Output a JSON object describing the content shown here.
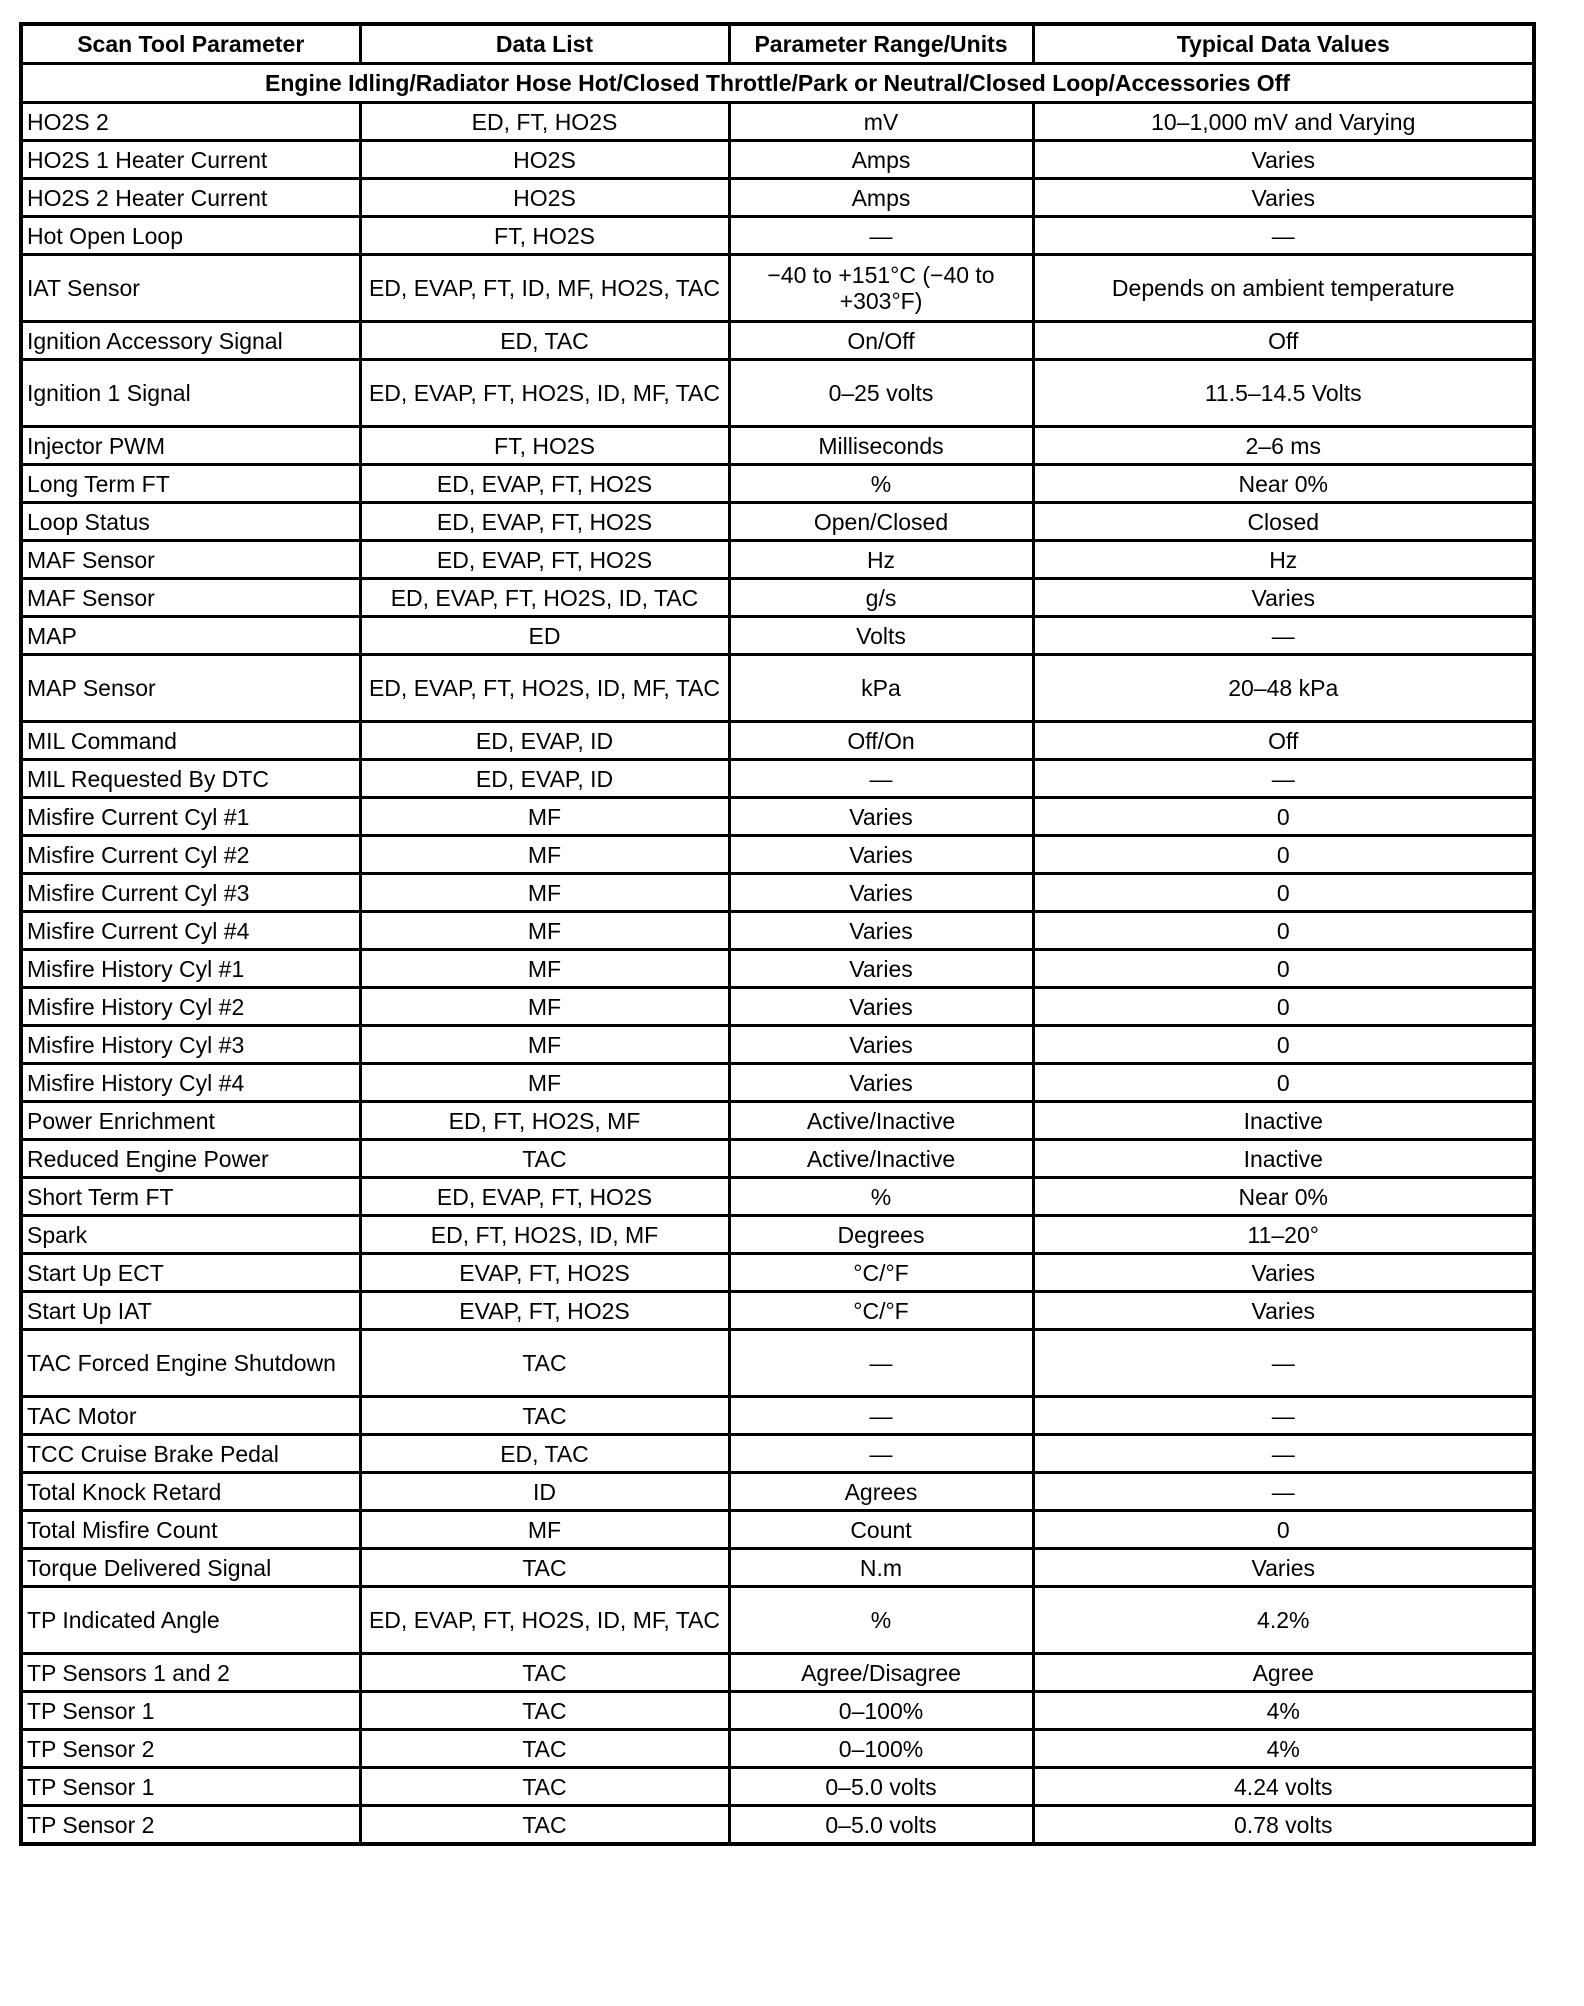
{
  "headers": [
    "Scan Tool Parameter",
    "Data List",
    "Parameter Range/Units",
    "Typical Data Values"
  ],
  "condition": "Engine Idling/Radiator Hose Hot/Closed Throttle/Park or Neutral/Closed Loop/Accessories Off",
  "rows": [
    [
      "HO2S 2",
      "ED, FT, HO2S",
      "mV",
      "10–1,000 mV and Varying"
    ],
    [
      "HO2S 1 Heater Current",
      "HO2S",
      "Amps",
      "Varies"
    ],
    [
      "HO2S 2 Heater Current",
      "HO2S",
      "Amps",
      "Varies"
    ],
    [
      "Hot Open Loop",
      "FT, HO2S",
      "—",
      "—"
    ],
    [
      "IAT Sensor",
      "ED, EVAP, FT, ID, MF, HO2S, TAC",
      "−40 to +151°C (−40 to +303°F)",
      "Depends on ambient temperature"
    ],
    [
      "Ignition Accessory Signal",
      "ED, TAC",
      "On/Off",
      "Off"
    ],
    [
      "Ignition 1 Signal",
      "ED, EVAP, FT, HO2S, ID, MF, TAC",
      "0–25 volts",
      "11.5–14.5 Volts"
    ],
    [
      "Injector PWM",
      "FT, HO2S",
      "Milliseconds",
      "2–6 ms"
    ],
    [
      "Long Term FT",
      "ED, EVAP, FT, HO2S",
      "%",
      "Near 0%"
    ],
    [
      "Loop Status",
      "ED, EVAP, FT, HO2S",
      "Open/Closed",
      "Closed"
    ],
    [
      "MAF Sensor",
      "ED, EVAP, FT, HO2S",
      "Hz",
      "Hz"
    ],
    [
      "MAF Sensor",
      "ED, EVAP, FT, HO2S, ID, TAC",
      "g/s",
      "Varies"
    ],
    [
      "MAP",
      "ED",
      "Volts",
      "—"
    ],
    [
      "MAP Sensor",
      "ED, EVAP, FT, HO2S, ID, MF, TAC",
      "kPa",
      "20–48 kPa"
    ],
    [
      "MIL Command",
      "ED, EVAP, ID",
      "Off/On",
      "Off"
    ],
    [
      "MIL Requested By DTC",
      "ED, EVAP, ID",
      "—",
      "—"
    ],
    [
      "Misfire Current Cyl #1",
      "MF",
      "Varies",
      "0"
    ],
    [
      "Misfire Current Cyl #2",
      "MF",
      "Varies",
      "0"
    ],
    [
      "Misfire Current Cyl #3",
      "MF",
      "Varies",
      "0"
    ],
    [
      "Misfire Current Cyl #4",
      "MF",
      "Varies",
      "0"
    ],
    [
      "Misfire History Cyl #1",
      "MF",
      "Varies",
      "0"
    ],
    [
      "Misfire History Cyl #2",
      "MF",
      "Varies",
      "0"
    ],
    [
      "Misfire History Cyl #3",
      "MF",
      "Varies",
      "0"
    ],
    [
      "Misfire History Cyl #4",
      "MF",
      "Varies",
      "0"
    ],
    [
      "Power Enrichment",
      "ED, FT, HO2S, MF",
      "Active/Inactive",
      "Inactive"
    ],
    [
      "Reduced Engine Power",
      "TAC",
      "Active/Inactive",
      "Inactive"
    ],
    [
      "Short Term FT",
      "ED, EVAP, FT, HO2S",
      "%",
      "Near 0%"
    ],
    [
      "Spark",
      "ED, FT, HO2S, ID, MF",
      "Degrees",
      "11–20°"
    ],
    [
      "Start Up ECT",
      "EVAP, FT, HO2S",
      "°C/°F",
      "Varies"
    ],
    [
      "Start Up IAT",
      "EVAP, FT, HO2S",
      "°C/°F",
      "Varies"
    ],
    [
      "TAC Forced Engine Shutdown",
      "TAC",
      "—",
      "—"
    ],
    [
      "TAC Motor",
      "TAC",
      "—",
      "—"
    ],
    [
      "TCC Cruise Brake Pedal",
      "ED, TAC",
      "—",
      "—"
    ],
    [
      "Total Knock Retard",
      "ID",
      "Agrees",
      "—"
    ],
    [
      "Total Misfire Count",
      "MF",
      "Count",
      "0"
    ],
    [
      "Torque Delivered Signal",
      "TAC",
      "N.m",
      "Varies"
    ],
    [
      "TP Indicated Angle",
      "ED, EVAP, FT, HO2S, ID, MF, TAC",
      "%",
      "4.2%"
    ],
    [
      "TP Sensors 1 and 2",
      "TAC",
      "Agree/Disagree",
      "Agree"
    ],
    [
      "TP Sensor 1",
      "TAC",
      "0–100%",
      "4%"
    ],
    [
      "TP Sensor 2",
      "TAC",
      "0–100%",
      "4%"
    ],
    [
      "TP Sensor 1",
      "TAC",
      "0–5.0 volts",
      "4.24 volts"
    ],
    [
      "TP Sensor 2",
      "TAC",
      "0–5.0 volts",
      "0.78 volts"
    ]
  ]
}
